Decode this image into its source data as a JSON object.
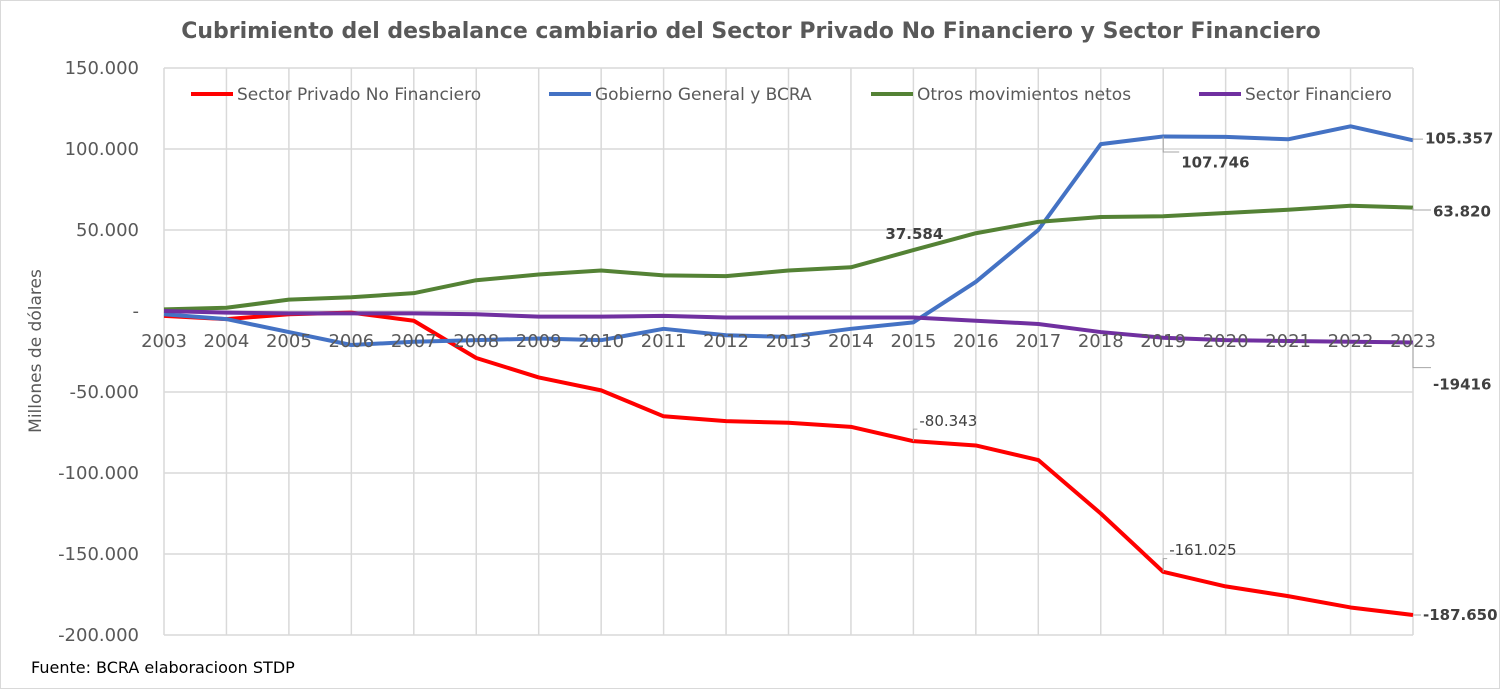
{
  "chart_data": {
    "type": "line",
    "title": "Cubrimiento del desbalance cambiario del Sector Privado No Financiero y Sector Financiero",
    "ylabel": "Millones de dólares",
    "xlabel": "",
    "ylim": [
      -200000,
      150000
    ],
    "ytick_values": [
      150000,
      100000,
      50000,
      0,
      -50000,
      -100000,
      -150000,
      -200000
    ],
    "ytick_labels": [
      "150.000",
      "100.000",
      "50.000",
      "-",
      "-50.000",
      "-100.000",
      "-150.000",
      "-200.000"
    ],
    "grid": true,
    "legend_position": "top",
    "categories": [
      "2003",
      "2004",
      "2005",
      "2006",
      "2007",
      "2008",
      "2009",
      "2010",
      "2011",
      "2012",
      "2013",
      "2014",
      "2015",
      "2016",
      "2017",
      "2018",
      "2019",
      "2020",
      "2021",
      "2022",
      "2023"
    ],
    "series": [
      {
        "name": "Sector Privado No Financiero",
        "color": "#ff0000",
        "values": [
          -3000,
          -5000,
          -2000,
          -1000,
          -6000,
          -29000,
          -41000,
          -49000,
          -65000,
          -68000,
          -69000,
          -71500,
          -80343,
          -83000,
          -92000,
          -125000,
          -161025,
          -170000,
          -176000,
          -183000,
          -187650
        ]
      },
      {
        "name": "Gobierno General y BCRA",
        "color": "#4472c4",
        "values": [
          -2000,
          -5000,
          -13000,
          -21000,
          -19000,
          -18000,
          -17000,
          -18000,
          -11000,
          -15000,
          -16000,
          -11000,
          -7000,
          18000,
          50000,
          103000,
          107746,
          107500,
          106000,
          114000,
          105357
        ]
      },
      {
        "name": "Otros movimientos netos",
        "color": "#548235",
        "values": [
          1000,
          2000,
          7000,
          8500,
          11000,
          19000,
          22500,
          25000,
          22000,
          21500,
          25000,
          27000,
          37584,
          48000,
          55000,
          58000,
          58500,
          60500,
          62500,
          65000,
          63820
        ]
      },
      {
        "name": "Sector Financiero",
        "color": "#7030a0",
        "values": [
          0,
          -1000,
          -1500,
          -1500,
          -1500,
          -2000,
          -3500,
          -3500,
          -3000,
          -4000,
          -4000,
          -4000,
          -4000,
          -6000,
          -8000,
          -13000,
          -16500,
          -18000,
          -18500,
          -19000,
          -19416
        ]
      }
    ],
    "data_labels": [
      {
        "series": 0,
        "index": 12,
        "text": "-80.343",
        "bold": false
      },
      {
        "series": 0,
        "index": 16,
        "text": "-161.025",
        "bold": false
      },
      {
        "series": 0,
        "index": 20,
        "text": "-187.650",
        "bold": true
      },
      {
        "series": 1,
        "index": 16,
        "text": "107.746",
        "bold": true
      },
      {
        "series": 1,
        "index": 20,
        "text": "105.357",
        "bold": true
      },
      {
        "series": 2,
        "index": 12,
        "text": "37.584",
        "bold": true
      },
      {
        "series": 2,
        "index": 20,
        "text": "63.820",
        "bold": true
      },
      {
        "series": 3,
        "index": 20,
        "text": "-19416",
        "bold": true
      }
    ]
  },
  "source": "Fuente: BCRA elaboracioon  STDP"
}
